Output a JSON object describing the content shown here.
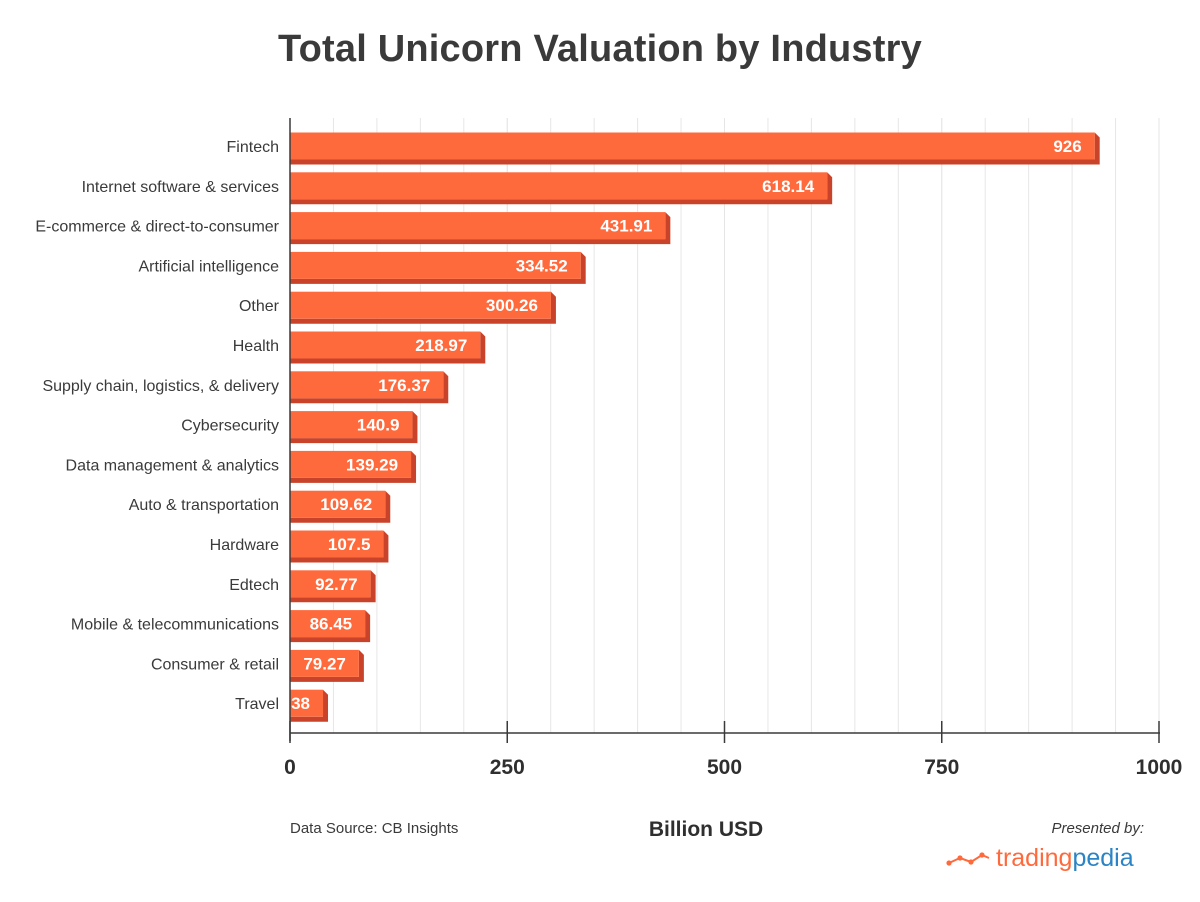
{
  "chart_data": {
    "type": "bar",
    "orientation": "horizontal",
    "title": "Total Unicorn Valuation by Industry",
    "xlabel": "Billion USD",
    "categories": [
      "Fintech",
      "Internet software & services",
      "E-commerce & direct-to-consumer",
      "Artificial intelligence",
      "Other",
      "Health",
      "Supply chain, logistics, & delivery",
      "Cybersecurity",
      "Data management & analytics",
      "Auto & transportation",
      "Hardware",
      "Edtech",
      "Mobile & telecommunications",
      "Consumer & retail",
      "Travel"
    ],
    "values": [
      926,
      618.14,
      431.91,
      334.52,
      300.26,
      218.97,
      176.37,
      140.9,
      139.29,
      109.62,
      107.5,
      92.77,
      86.45,
      79.27,
      38
    ],
    "value_labels": [
      "926",
      "618.14",
      "431.91",
      "334.52",
      "300.26",
      "218.97",
      "176.37",
      "140.9",
      "139.29",
      "109.62",
      "107.5",
      "92.77",
      "86.45",
      "79.27",
      "38"
    ],
    "xlim": [
      0,
      1000
    ],
    "xticks": [
      0,
      250,
      500,
      750,
      1000
    ],
    "xtick_labels": [
      "0",
      "250",
      "500",
      "750",
      "1000"
    ],
    "grid": true,
    "colors": {
      "bar": "#ff6a3d",
      "bar_shadow": "#c8432a",
      "grid": "#e6e6e6",
      "axis": "#3a3a3a"
    }
  },
  "footer": {
    "source": "Data Source: CB Insights",
    "presented_by": "Presented by:",
    "brand_part1": "trading",
    "brand_part2": "pedia"
  }
}
